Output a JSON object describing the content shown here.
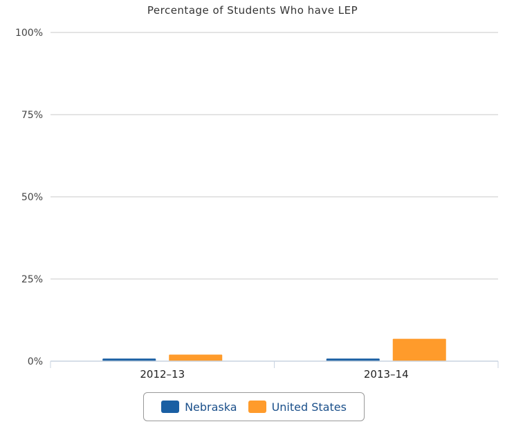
{
  "chart_data": {
    "type": "bar",
    "title": "Percentage of Students Who have LEP",
    "categories": [
      "2012–13",
      "2013–14"
    ],
    "series": [
      {
        "name": "Nebraska",
        "color": "#1a5fa3",
        "values": [
          0.8,
          0.8
        ]
      },
      {
        "name": "United States",
        "color": "#ff9b2b",
        "values": [
          2.0,
          6.8
        ]
      }
    ],
    "ylim": [
      0,
      100
    ],
    "yticks": [
      0,
      25,
      50,
      75,
      100
    ],
    "ytick_labels": [
      "0%",
      "25%",
      "50%",
      "75%",
      "100%"
    ],
    "xlabel": "",
    "ylabel": "",
    "grid": true,
    "legend_position": "bottom-center"
  }
}
